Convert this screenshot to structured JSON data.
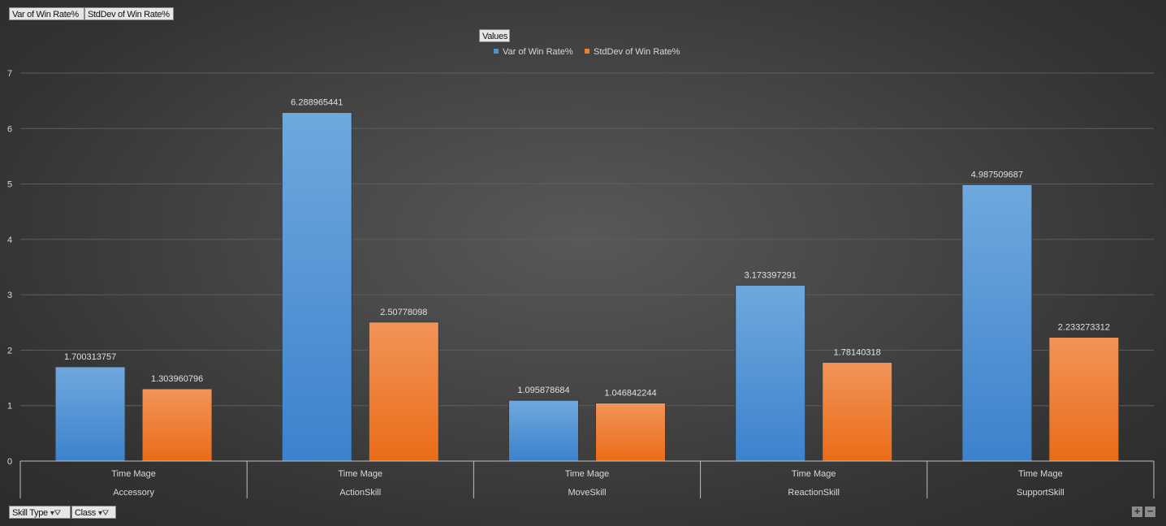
{
  "value_fields": [
    {
      "name": "btn-var",
      "label": "Var of Win Rate%"
    },
    {
      "name": "btn-stddev",
      "label": "StdDev of Win Rate%"
    }
  ],
  "legend_field_label": "Values",
  "axis_fields": [
    {
      "label": "Skill Type"
    },
    {
      "label": "Class"
    }
  ],
  "zoom": {
    "plus": "+",
    "minus": "−"
  },
  "colors": {
    "series1": "#4f91d6",
    "series2": "#ef7c2f"
  },
  "chart_data": {
    "type": "bar",
    "ylim": [
      0,
      7
    ],
    "yticks": [
      0,
      1,
      2,
      3,
      4,
      5,
      6,
      7
    ],
    "grid": true,
    "legend": "top-center",
    "categories": [
      "Time Mage",
      "Time Mage",
      "Time Mage",
      "Time Mage",
      "Time Mage"
    ],
    "groups": [
      "Accessory",
      "ActionSkill",
      "MoveSkill",
      "ReactionSkill",
      "SupportSkill"
    ],
    "series": [
      {
        "name": "Var of Win Rate%",
        "values": [
          1.700313757,
          6.288965441,
          1.095878684,
          3.173397291,
          4.987509687
        ]
      },
      {
        "name": "StdDev of Win Rate%",
        "values": [
          1.303960796,
          2.50778098,
          1.046842244,
          1.78140318,
          2.233273312
        ]
      }
    ]
  }
}
